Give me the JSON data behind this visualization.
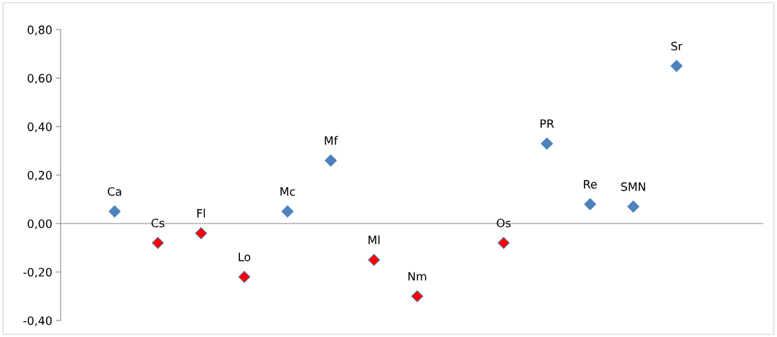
{
  "chart_data": {
    "type": "scatter",
    "categories": [
      "Ca",
      "Cs",
      "Fl",
      "Lo",
      "Mc",
      "Mf",
      "Ml",
      "Nm",
      null,
      "Os",
      "PR",
      "Re",
      "SMN",
      "Sr"
    ],
    "series": [
      {
        "color": "#4f81bd",
        "values": [
          0.05,
          -0.08,
          -0.04,
          -0.22,
          0.05,
          0.26,
          -0.15,
          -0.3,
          null,
          -0.08,
          0.33,
          0.08,
          0.07,
          0.65
        ],
        "colors": [
          "#4f81bd",
          "#ff0000",
          "#ff0000",
          "#ff0000",
          "#4f81bd",
          "#4f81bd",
          "#ff0000",
          "#ff0000",
          null,
          "#ff0000",
          "#4f81bd",
          "#4f81bd",
          "#4f81bd",
          "#4f81bd"
        ]
      }
    ],
    "ylim": [
      -0.4,
      0.8
    ],
    "yticks": [
      {
        "value": -0.4,
        "label": "-0,40"
      },
      {
        "value": -0.2,
        "label": "-0,20"
      },
      {
        "value": 0,
        "label": "0,00"
      },
      {
        "value": 0.2,
        "label": "0,20"
      },
      {
        "value": 0.4,
        "label": "0,40"
      },
      {
        "value": 0.6,
        "label": "0,60"
      },
      {
        "value": 0.8,
        "label": "0,80"
      }
    ],
    "tick_labels": "y",
    "marker": "diamond",
    "grid": false,
    "legend": false
  }
}
